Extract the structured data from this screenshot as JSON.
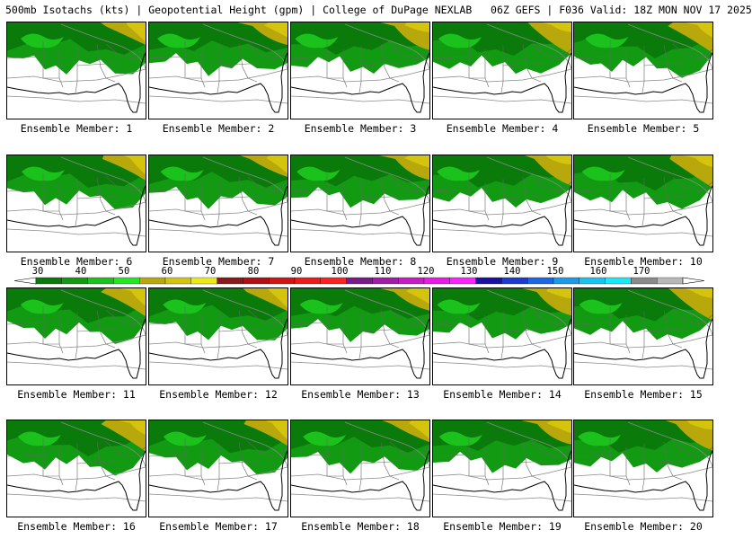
{
  "title": "500mb Isotachs (kts) | Geopotential Height (gpm) | College of DuPage NEXLAB   06Z GEFS | F036 Valid: 18Z MON NOV 17 2025",
  "panel_label_prefix": "Ensemble Member: ",
  "panels": [
    {
      "member": "1"
    },
    {
      "member": "2"
    },
    {
      "member": "3"
    },
    {
      "member": "4"
    },
    {
      "member": "5"
    },
    {
      "member": "6"
    },
    {
      "member": "7"
    },
    {
      "member": "8"
    },
    {
      "member": "9"
    },
    {
      "member": "10"
    },
    {
      "member": "11"
    },
    {
      "member": "12"
    },
    {
      "member": "13"
    },
    {
      "member": "14"
    },
    {
      "member": "15"
    },
    {
      "member": "16"
    },
    {
      "member": "17"
    },
    {
      "member": "18"
    },
    {
      "member": "19"
    },
    {
      "member": "20"
    }
  ],
  "colorbar": {
    "labels": [
      "30",
      "40",
      "50",
      "60",
      "70",
      "80",
      "90",
      "100",
      "110",
      "120",
      "130",
      "140",
      "150",
      "160",
      "170"
    ],
    "colors": [
      "#0a7a0a",
      "#129a12",
      "#1cc21c",
      "#22e822",
      "#b8a80c",
      "#d4c40e",
      "#ece816",
      "#8a1a1a",
      "#b01010",
      "#d21414",
      "#ee1a1a",
      "#ff2020",
      "#7a1a8a",
      "#a21aa8",
      "#c81ac6",
      "#ea18e8",
      "#ff22ff",
      "#1a10a6",
      "#1a3ad0",
      "#1a68e8",
      "#1a9ae8",
      "#16c4f2",
      "#18e8f8",
      "#8a8a8a",
      "#b8b8b8"
    ]
  }
}
